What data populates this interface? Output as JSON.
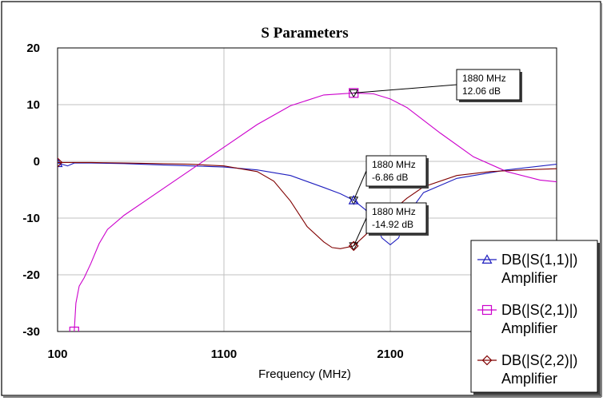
{
  "chart_data": {
    "type": "line",
    "title": "S Parameters",
    "xlabel": "Frequency (MHz)",
    "ylabel": "",
    "xlim": [
      100,
      3100
    ],
    "ylim": [
      -30,
      20
    ],
    "xticks": [
      "100",
      "1100",
      "2100"
    ],
    "yticks": [
      "20",
      "10",
      "0",
      "-10",
      "-20",
      "-30"
    ],
    "grid": true,
    "legend_position": "bottom-right",
    "series": [
      {
        "name": "DB(|S(1,1)|)",
        "sub": "Amplifier",
        "color": "#1f1fbf",
        "marker": "triangle",
        "x": [
          100,
          160,
          200,
          260,
          300,
          500,
          700,
          900,
          1100,
          1300,
          1500,
          1700,
          1800,
          1880,
          1950,
          2000,
          2050,
          2100,
          2150,
          2200,
          2300,
          2500,
          2800,
          3100
        ],
        "y": [
          -0.3,
          -0.8,
          -0.3,
          -0.3,
          -0.3,
          -0.4,
          -0.6,
          -0.8,
          -1.0,
          -1.5,
          -2.5,
          -4.6,
          -5.7,
          -6.86,
          -8.5,
          -10.5,
          -13.5,
          -14.7,
          -13.5,
          -9.5,
          -5.5,
          -3.0,
          -1.5,
          -0.5
        ]
      },
      {
        "name": "DB(|S(2,1)|)",
        "sub": "Amplifier",
        "color": "#cc00cc",
        "marker": "square",
        "x": [
          200,
          210,
          230,
          260,
          300,
          350,
          400,
          500,
          700,
          900,
          1100,
          1300,
          1500,
          1700,
          1880,
          2000,
          2100,
          2200,
          2400,
          2600,
          2800,
          3000,
          3100
        ],
        "y": [
          -30,
          -25,
          -22,
          -20.5,
          -18,
          -14.5,
          -12,
          -9.5,
          -5.5,
          -1.5,
          2.5,
          6.5,
          9.8,
          11.7,
          12.06,
          11.9,
          11.0,
          9.5,
          5.0,
          0.8,
          -1.8,
          -3.3,
          -3.6
        ]
      },
      {
        "name": "DB(|S(2,2)|)",
        "sub": "Amplifier",
        "color": "#800000",
        "marker": "diamond",
        "x": [
          100,
          300,
          500,
          700,
          900,
          1100,
          1300,
          1400,
          1500,
          1600,
          1700,
          1750,
          1800,
          1880,
          1950,
          2000,
          2100,
          2200,
          2300,
          2500,
          2700,
          2900,
          3100
        ],
        "y": [
          -0.2,
          -0.2,
          -0.3,
          -0.4,
          -0.5,
          -0.8,
          -1.8,
          -3.5,
          -7.0,
          -11.5,
          -14.2,
          -15.2,
          -15.4,
          -14.92,
          -13.0,
          -11.5,
          -9.0,
          -6.5,
          -4.5,
          -2.5,
          -1.8,
          -1.5,
          -1.3
        ]
      }
    ],
    "annotations": [
      {
        "series": 1,
        "x": 1880,
        "y": 12.06,
        "line1": "1880 MHz",
        "line2": "12.06 dB"
      },
      {
        "series": 0,
        "x": 1880,
        "y": -6.86,
        "line1": "1880 MHz",
        "line2": "-6.86 dB"
      },
      {
        "series": 2,
        "x": 1880,
        "y": -14.92,
        "line1": "1880 MHz",
        "line2": "-14.92 dB"
      }
    ]
  }
}
